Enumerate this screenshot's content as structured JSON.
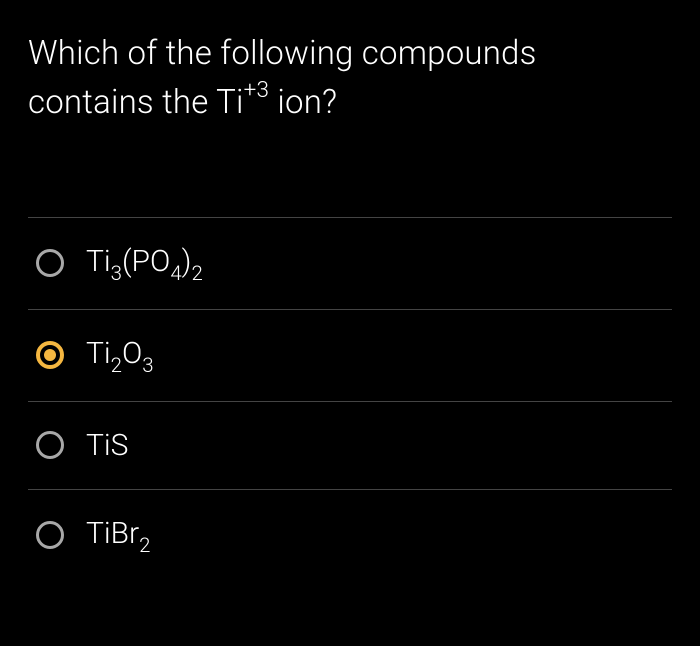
{
  "question": {
    "line1": "Which of the following compounds",
    "line2_prefix": "contains the Ti",
    "line2_sup": "+3",
    "line2_suffix": " ion?"
  },
  "options": [
    {
      "selected": false,
      "parts": [
        {
          "text": "Ti",
          "type": "normal"
        },
        {
          "text": "3",
          "type": "sub"
        },
        {
          "text": "(PO",
          "type": "normal"
        },
        {
          "text": "4",
          "type": "sub"
        },
        {
          "text": ")",
          "type": "normal"
        },
        {
          "text": "2",
          "type": "sub"
        }
      ]
    },
    {
      "selected": true,
      "parts": [
        {
          "text": "Ti",
          "type": "normal"
        },
        {
          "text": "2",
          "type": "sub"
        },
        {
          "text": "O",
          "type": "normal"
        },
        {
          "text": "3",
          "type": "sub"
        }
      ]
    },
    {
      "selected": false,
      "parts": [
        {
          "text": "TiS",
          "type": "normal"
        }
      ]
    },
    {
      "selected": false,
      "parts": [
        {
          "text": "TiBr",
          "type": "normal"
        },
        {
          "text": "2",
          "type": "sub"
        }
      ]
    }
  ],
  "colors": {
    "background": "#000000",
    "text": "#ffffff",
    "radio_unselected": "#a8a8a8",
    "radio_selected": "#f5b740",
    "divider": "#444444"
  },
  "typography": {
    "question_fontsize": 33,
    "option_fontsize": 30,
    "font_weight": 300
  }
}
